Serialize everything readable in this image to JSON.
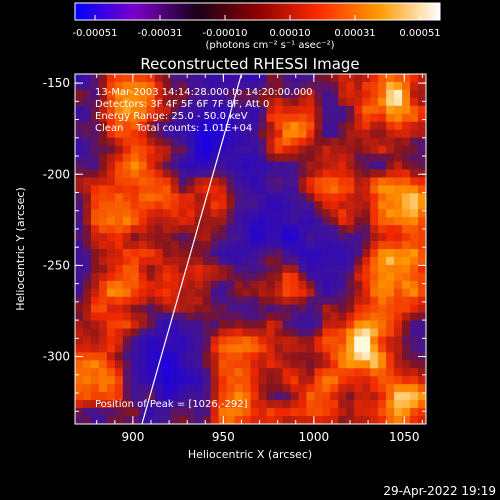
{
  "colorbar": {
    "ticks": [
      "-0.00051",
      "-0.00031",
      "-0.00010",
      "0.00010",
      "0.00031",
      "0.00051"
    ],
    "units": "(photons cm⁻² s⁻¹ asec⁻²)",
    "colors": [
      "#0000ff",
      "#7a00c8",
      "#1a001a",
      "#8a0000",
      "#ff2a00",
      "#ff9a00",
      "#ffffff"
    ]
  },
  "chart_data": {
    "type": "heatmap",
    "title": "Reconstructed RHESSI Image",
    "xlabel": "Heliocentric X (arcsec)",
    "ylabel": "Heliocentric Y (arcsec)",
    "xlim": [
      868,
      1062
    ],
    "ylim": [
      -337,
      -145
    ],
    "xticks": [
      "900",
      "950",
      "1000",
      "1050"
    ],
    "yticks": [
      "-150",
      "-200",
      "-250",
      "-300"
    ],
    "annotations": [
      "13-Mar-2003 14:14:28.000 to 14:20:00.000",
      "Detectors: 3F 4F 5F 6F 7F 8F, Att 0",
      "Energy Range: 25.0 - 50.0 keV",
      "Clean    Total counts: 1.01E+04"
    ],
    "peak_label": "Position of Peak = [1026,-292]",
    "peak": [
      1026,
      -292
    ],
    "limb_line": [
      [
        905,
        -337
      ],
      [
        960,
        -145
      ]
    ],
    "blobs": [
      {
        "x": 1040,
        "y": -160,
        "intensity": 0.95
      },
      {
        "x": 1050,
        "y": -215,
        "intensity": 0.9
      },
      {
        "x": 1045,
        "y": -255,
        "intensity": 0.95
      },
      {
        "x": 1026,
        "y": -292,
        "intensity": 1.0
      },
      {
        "x": 1050,
        "y": -325,
        "intensity": 0.85
      },
      {
        "x": 955,
        "y": -300,
        "intensity": 0.85
      },
      {
        "x": 985,
        "y": -260,
        "intensity": 0.8
      },
      {
        "x": 880,
        "y": -310,
        "intensity": 0.75
      },
      {
        "x": 892,
        "y": -268,
        "intensity": 0.7
      },
      {
        "x": 890,
        "y": -225,
        "intensity": 0.6
      },
      {
        "x": 905,
        "y": -195,
        "intensity": 0.75
      },
      {
        "x": 900,
        "y": -160,
        "intensity": 0.7
      },
      {
        "x": 985,
        "y": -175,
        "intensity": 0.6
      },
      {
        "x": 1010,
        "y": -215,
        "intensity": 0.6
      },
      {
        "x": 930,
        "y": -255,
        "intensity": 0.55
      },
      {
        "x": 1005,
        "y": -320,
        "intensity": 0.6
      },
      {
        "x": 940,
        "y": -215,
        "intensity": 0.5
      },
      {
        "x": 960,
        "y": -330,
        "intensity": 0.7
      }
    ],
    "troughs": [
      {
        "x": 945,
        "y": -180,
        "intensity": -0.6
      },
      {
        "x": 925,
        "y": -300,
        "intensity": -0.55
      },
      {
        "x": 1000,
        "y": -250,
        "intensity": -0.4
      },
      {
        "x": 980,
        "y": -230,
        "intensity": -0.35
      }
    ]
  },
  "footer": {
    "timestamp": "29-Apr-2022 19:19"
  }
}
